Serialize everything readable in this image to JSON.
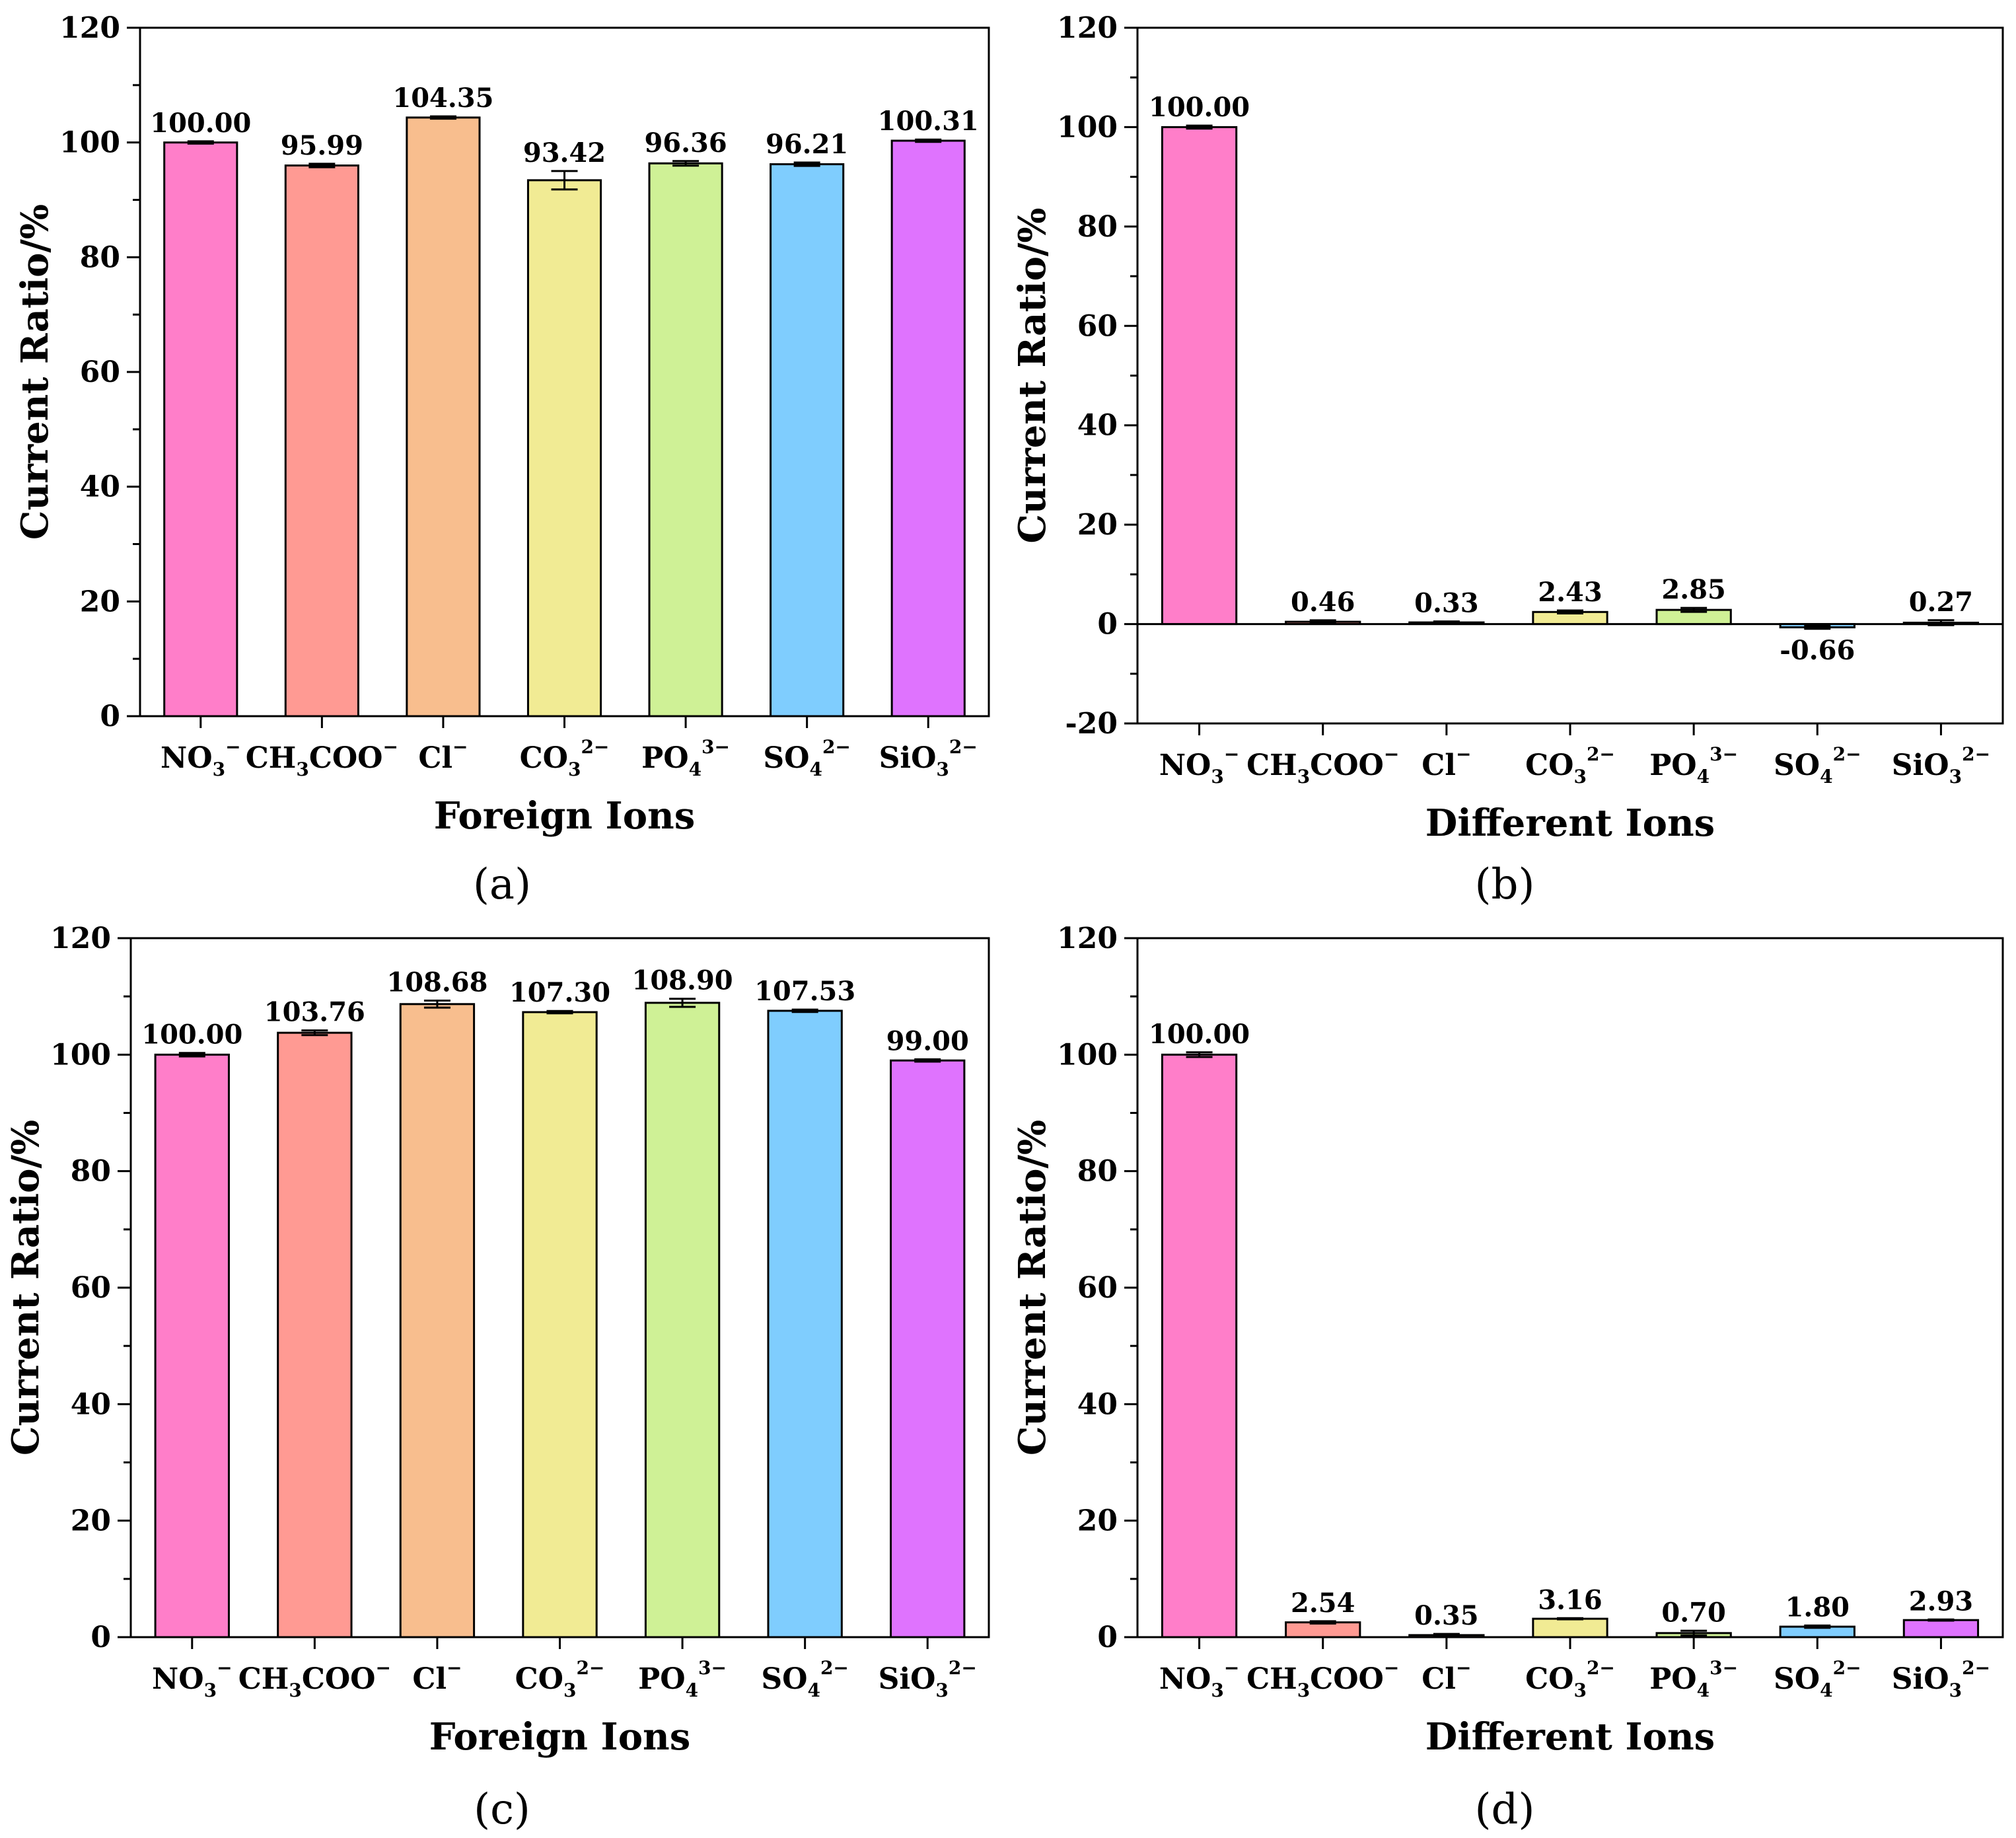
{
  "chart_data": [
    {
      "type": "bar",
      "panel_label": "(a)",
      "xlabel": "Foreign Ions",
      "ylabel": "Current Ratio/%",
      "ylim": [
        0,
        120
      ],
      "yticks": [
        0,
        20,
        40,
        60,
        80,
        100,
        120
      ],
      "categories": [
        "NO3-",
        "CH3COO-",
        "Cl-",
        "CO32-",
        "PO43-",
        "SO42-",
        "SiO32-"
      ],
      "values": [
        100.0,
        95.99,
        104.35,
        93.42,
        96.36,
        96.21,
        100.31
      ],
      "value_labels": [
        "100.00",
        "95.99",
        "104.35",
        "93.42",
        "96.36",
        "96.21",
        "100.31"
      ],
      "errors": [
        0.2,
        0.3,
        0.2,
        1.6,
        0.4,
        0.3,
        0.2
      ]
    },
    {
      "type": "bar",
      "panel_label": "(b)",
      "xlabel": "Different Ions",
      "ylabel": "Current Ratio/%",
      "ylim": [
        -20,
        120
      ],
      "yticks": [
        -20,
        0,
        20,
        40,
        60,
        80,
        100,
        120
      ],
      "categories": [
        "NO3-",
        "CH3COO-",
        "Cl-",
        "CO32-",
        "PO43-",
        "SO42-",
        "SiO32-"
      ],
      "values": [
        100.0,
        0.46,
        0.33,
        2.43,
        2.85,
        -0.66,
        0.27
      ],
      "value_labels": [
        "100.00",
        "0.46",
        "0.33",
        "2.43",
        "2.85",
        "-0.66",
        "0.27"
      ],
      "errors": [
        0.3,
        0.3,
        0.2,
        0.3,
        0.4,
        0.3,
        0.5
      ]
    },
    {
      "type": "bar",
      "panel_label": "(c)",
      "xlabel": "Foreign Ions",
      "ylabel": "Current Ratio/%",
      "ylim": [
        0,
        120
      ],
      "yticks": [
        0,
        20,
        40,
        60,
        80,
        100,
        120
      ],
      "categories": [
        "NO3-",
        "CH3COO-",
        "Cl-",
        "CO32-",
        "PO43-",
        "SO42-",
        "SiO32-"
      ],
      "values": [
        100.0,
        103.76,
        108.68,
        107.3,
        108.9,
        107.53,
        99.0
      ],
      "value_labels": [
        "100.00",
        "103.76",
        "108.68",
        "107.30",
        "108.90",
        "107.53",
        "99.00"
      ],
      "errors": [
        0.3,
        0.4,
        0.6,
        0.2,
        0.7,
        0.2,
        0.2
      ]
    },
    {
      "type": "bar",
      "panel_label": "(d)",
      "xlabel": "Different Ions",
      "ylabel": "Current Ratio/%",
      "ylim": [
        0,
        120
      ],
      "yticks": [
        0,
        20,
        40,
        60,
        80,
        100,
        120
      ],
      "categories": [
        "NO3-",
        "CH3COO-",
        "Cl-",
        "CO32-",
        "PO43-",
        "SO42-",
        "SiO32-"
      ],
      "values": [
        100.0,
        2.54,
        0.35,
        3.16,
        0.7,
        1.8,
        2.93
      ],
      "value_labels": [
        "100.00",
        "2.54",
        "0.35",
        "3.16",
        "0.70",
        "1.80",
        "2.93"
      ],
      "errors": [
        0.4,
        0.2,
        0.2,
        0.1,
        0.4,
        0.2,
        0.1
      ]
    }
  ],
  "category_parts": [
    {
      "base": "NO",
      "sub": "3",
      "sup": "−"
    },
    {
      "base": "CH",
      "sub": "3",
      "tail": "COO",
      "sup": "−"
    },
    {
      "base": "Cl",
      "sup": "−"
    },
    {
      "base": "CO",
      "sub": "3",
      "sup": "2−"
    },
    {
      "base": "PO",
      "sub": "4",
      "sup": "3−"
    },
    {
      "base": "SO",
      "sub": "4",
      "sup": "2−"
    },
    {
      "base": "SiO",
      "sub": "3",
      "sup": "2−"
    }
  ],
  "colors": {
    "bars": [
      "#FF7EC9",
      "#FF9A93",
      "#F8BE8E",
      "#F1EB94",
      "#CFF196",
      "#7FCDFE",
      "#DF73FE"
    ],
    "stroke": "#000000"
  }
}
